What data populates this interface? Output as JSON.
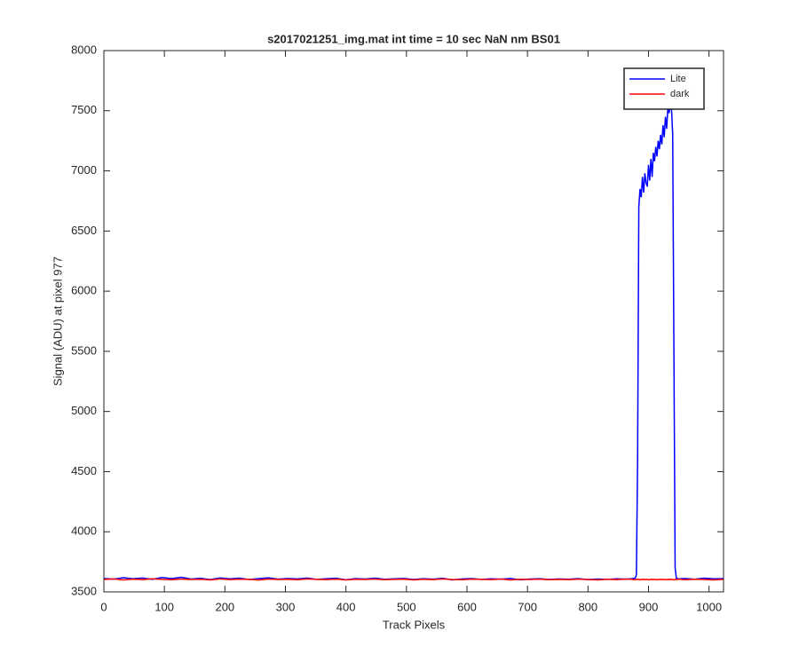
{
  "chart_data": {
    "type": "line",
    "title": "s2017021251_img.mat int time = 10 sec  NaN nm BS01",
    "x_label": "Track Pixels",
    "y_label": "Signal (ADU) at pixel 977",
    "x": [
      0,
      16,
      32,
      48,
      64,
      80,
      96,
      112,
      128,
      144,
      160,
      176,
      192,
      208,
      224,
      240,
      256,
      272,
      288,
      304,
      320,
      336,
      352,
      368,
      384,
      400,
      416,
      432,
      448,
      464,
      480,
      496,
      512,
      528,
      544,
      560,
      576,
      592,
      608,
      624,
      640,
      656,
      672,
      688,
      704,
      720,
      736,
      752,
      768,
      784,
      800,
      816,
      832,
      848,
      864,
      872,
      878,
      880,
      882,
      884,
      886,
      888,
      890,
      892,
      894,
      896,
      898,
      900,
      902,
      904,
      906,
      908,
      910,
      912,
      914,
      916,
      918,
      920,
      922,
      924,
      926,
      928,
      930,
      932,
      934,
      936,
      938,
      940,
      942,
      944,
      946,
      950,
      960,
      976,
      992,
      1008,
      1024
    ],
    "series": [
      {
        "name": "Lite",
        "color": "#0000ff",
        "values": [
          3612,
          3606,
          3618,
          3610,
          3615,
          3604,
          3620,
          3611,
          3622,
          3607,
          3613,
          3602,
          3616,
          3609,
          3614,
          3603,
          3611,
          3617,
          3606,
          3612,
          3608,
          3615,
          3604,
          3610,
          3613,
          3601,
          3611,
          3607,
          3614,
          3605,
          3609,
          3612,
          3603,
          3610,
          3606,
          3613,
          3600,
          3608,
          3611,
          3604,
          3609,
          3606,
          3612,
          3601,
          3607,
          3610,
          3603,
          3608,
          3605,
          3611,
          3602,
          3607,
          3604,
          3609,
          3606,
          3610,
          3615,
          3640,
          4600,
          6700,
          6850,
          6780,
          6950,
          6820,
          6980,
          6900,
          6870,
          7050,
          6920,
          7100,
          6950,
          7150,
          7080,
          7200,
          7120,
          7250,
          7180,
          7300,
          7220,
          7380,
          7280,
          7450,
          7350,
          7520,
          7480,
          7550,
          7520,
          7300,
          5500,
          3700,
          3615,
          3608,
          3612,
          3605,
          3614,
          3609,
          3611
        ]
      },
      {
        "name": "dark",
        "color": "#ff0000",
        "values": [
          3603,
          3608,
          3600,
          3606,
          3602,
          3609,
          3604,
          3601,
          3607,
          3603,
          3605,
          3600,
          3608,
          3602,
          3606,
          3604,
          3599,
          3607,
          3603,
          3605,
          3601,
          3608,
          3604,
          3602,
          3606,
          3600,
          3605,
          3603,
          3607,
          3601,
          3604,
          3606,
          3600,
          3605,
          3602,
          3608,
          3603,
          3601,
          3606,
          3604,
          3602,
          3607,
          3600,
          3605,
          3603,
          3606,
          3601,
          3604,
          3602,
          3606,
          3603,
          3600,
          3605,
          3602,
          3607,
          3604,
          3601,
          3606,
          3603,
          3605,
          3600,
          3604,
          3602,
          3606,
          3601,
          3605,
          3603,
          3600,
          3604,
          3602,
          3606,
          3601,
          3605,
          3603,
          3600,
          3604,
          3602,
          3606,
          3601,
          3605,
          3603,
          3600,
          3604,
          3602,
          3606,
          3601,
          3605,
          3603,
          3600,
          3604,
          3602,
          3606,
          3601,
          3605,
          3603,
          3600,
          3604
        ]
      }
    ],
    "xlim": [
      0,
      1024
    ],
    "ylim": [
      3500,
      8000
    ],
    "xticks": [
      0,
      100,
      200,
      300,
      400,
      500,
      600,
      700,
      800,
      900,
      1000
    ],
    "yticks": [
      3500,
      4000,
      4500,
      5000,
      5500,
      6000,
      6500,
      7000,
      7500,
      8000
    ],
    "legend": "upper right"
  }
}
